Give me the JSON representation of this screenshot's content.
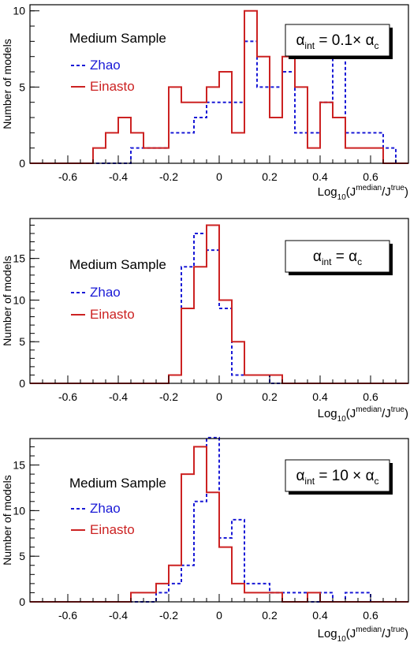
{
  "chart_data": [
    {
      "type": "histogram",
      "bin_width": 0.05,
      "bin_start": -0.75,
      "xlim": [
        -0.75,
        0.75
      ],
      "ylim": [
        0,
        10.4
      ],
      "xticks": [
        -0.6,
        -0.4,
        -0.2,
        0,
        0.2,
        0.4,
        0.6
      ],
      "xtick_labels": [
        "-0.6",
        "-0.4",
        "-0.2",
        "0",
        "0.2",
        "0.4",
        "0.6"
      ],
      "yticks": [
        0,
        5,
        10
      ],
      "ytick_labels": [
        "0",
        "5",
        "10"
      ],
      "xlabel": {
        "base": "Log",
        "sub": "10",
        "open": "(J",
        "sup1": "median",
        "mid": "/J",
        "sup2": "true",
        "close": ")"
      },
      "ylabel": "Number of models",
      "sample_label": "Medium Sample",
      "alpha_label": {
        "alpha": "α",
        "sub": "int",
        "rel": " = 0.1× ",
        "alpha2": "α",
        "sub2": "c"
      },
      "series": [
        {
          "name": "Zhao",
          "color": "#1a1ad6",
          "dashed": true,
          "values": [
            0,
            0,
            0,
            0,
            0,
            0,
            0,
            0,
            1,
            1,
            1,
            2,
            2,
            3,
            4,
            4,
            4,
            8,
            5,
            5,
            6,
            2,
            2,
            4,
            7,
            2,
            2,
            2,
            1,
            0
          ]
        },
        {
          "name": "Einasto",
          "color": "#cc2222",
          "dashed": false,
          "values": [
            0,
            0,
            0,
            0,
            0,
            1,
            2,
            3,
            2,
            1,
            1,
            5,
            4,
            4,
            5,
            6,
            2,
            10,
            7,
            3,
            7,
            5,
            1,
            4,
            3,
            1,
            1,
            1,
            0,
            0
          ]
        }
      ]
    },
    {
      "type": "histogram",
      "bin_width": 0.05,
      "bin_start": -0.75,
      "xlim": [
        -0.75,
        0.75
      ],
      "ylim": [
        0,
        19.8
      ],
      "xticks": [
        -0.6,
        -0.4,
        -0.2,
        0,
        0.2,
        0.4,
        0.6
      ],
      "xtick_labels": [
        "-0.6",
        "-0.4",
        "-0.2",
        "0",
        "0.2",
        "0.4",
        "0.6"
      ],
      "yticks": [
        0,
        5,
        10,
        15
      ],
      "ytick_labels": [
        "0",
        "5",
        "10",
        "15"
      ],
      "xlabel": {
        "base": "Log",
        "sub": "10",
        "open": "(J",
        "sup1": "median",
        "mid": "/J",
        "sup2": "true",
        "close": ")"
      },
      "ylabel": "Number of models",
      "sample_label": "Medium Sample",
      "alpha_label": {
        "alpha": "α",
        "sub": "int",
        "rel": " = ",
        "alpha2": "α",
        "sub2": "c"
      },
      "series": [
        {
          "name": "Zhao",
          "color": "#1a1ad6",
          "dashed": true,
          "values": [
            0,
            0,
            0,
            0,
            0,
            0,
            0,
            0,
            0,
            0,
            0,
            1,
            14,
            18,
            16,
            9,
            1,
            1,
            1,
            0,
            0,
            0,
            0,
            0,
            0,
            0,
            0,
            0,
            0,
            0
          ]
        },
        {
          "name": "Einasto",
          "color": "#cc2222",
          "dashed": false,
          "values": [
            0,
            0,
            0,
            0,
            0,
            0,
            0,
            0,
            0,
            0,
            0,
            1,
            9,
            14,
            19,
            10,
            5,
            1,
            1,
            1,
            0,
            0,
            0,
            0,
            0,
            0,
            0,
            0,
            0,
            0
          ]
        }
      ]
    },
    {
      "type": "histogram",
      "bin_width": 0.05,
      "bin_start": -0.75,
      "xlim": [
        -0.75,
        0.75
      ],
      "ylim": [
        0,
        17.9
      ],
      "xticks": [
        -0.6,
        -0.4,
        -0.2,
        0,
        0.2,
        0.4,
        0.6
      ],
      "xtick_labels": [
        "-0.6",
        "-0.4",
        "-0.2",
        "0",
        "0.2",
        "0.4",
        "0.6"
      ],
      "yticks": [
        0,
        5,
        10,
        15
      ],
      "ytick_labels": [
        "0",
        "5",
        "10",
        "15"
      ],
      "xlabel": {
        "base": "Log",
        "sub": "10",
        "open": "(J",
        "sup1": "median",
        "mid": "/J",
        "sup2": "true",
        "close": ")"
      },
      "ylabel": "Number of models",
      "sample_label": "Medium Sample",
      "alpha_label": {
        "alpha": "α",
        "sub": "int",
        "rel": " = 10 × ",
        "alpha2": "α",
        "sub2": "c"
      },
      "series": [
        {
          "name": "Zhao",
          "color": "#1a1ad6",
          "dashed": true,
          "values": [
            0,
            0,
            0,
            0,
            0,
            0,
            0,
            0,
            0,
            0,
            1,
            2,
            4,
            11,
            18,
            7,
            9,
            2,
            2,
            1,
            1,
            1,
            0,
            1,
            0,
            1,
            1,
            0,
            0,
            0
          ]
        },
        {
          "name": "Einasto",
          "color": "#cc2222",
          "dashed": false,
          "values": [
            0,
            0,
            0,
            0,
            0,
            0,
            0,
            0,
            1,
            1,
            2,
            4,
            14,
            17,
            12,
            6,
            2,
            1,
            1,
            1,
            0,
            0,
            1,
            0,
            0,
            0,
            0,
            0,
            0,
            0
          ]
        }
      ]
    }
  ]
}
